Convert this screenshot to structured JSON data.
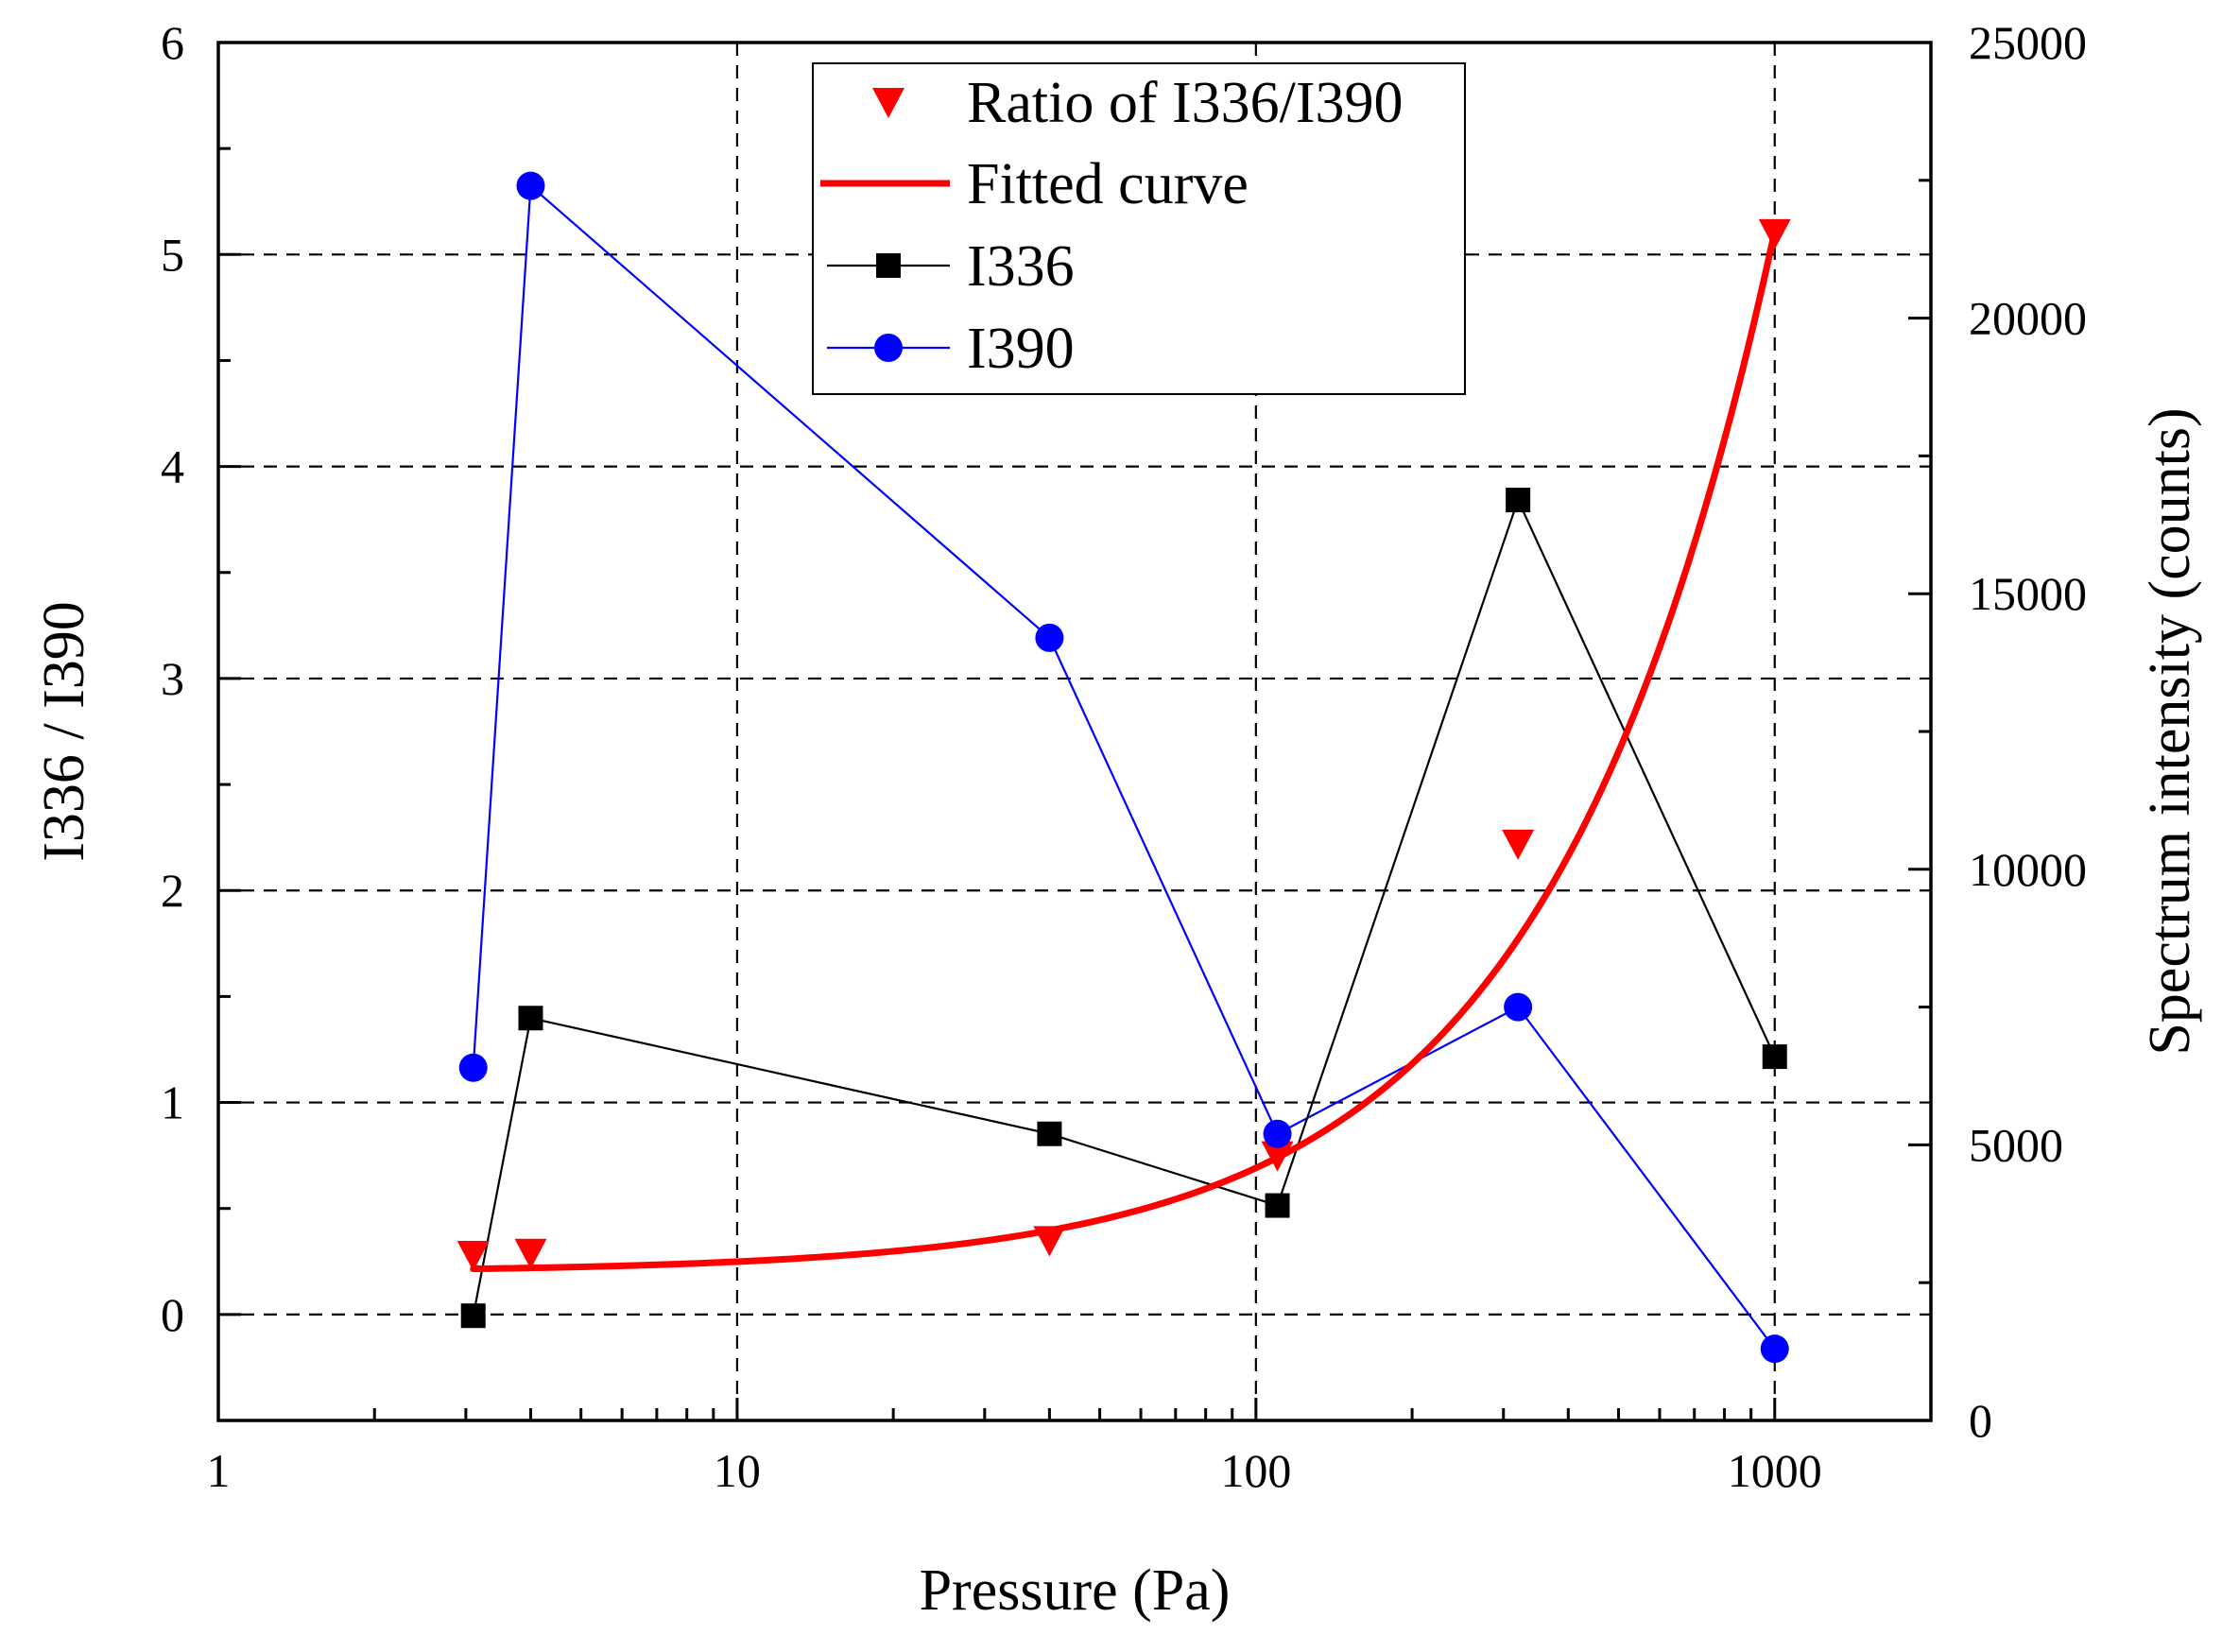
{
  "chart_data": {
    "type": "line",
    "title": "",
    "xlabel": "Pressure (Pa)",
    "ylabel_left": "I336 / I390",
    "ylabel_right": "Spectrum intensity (counts)",
    "x_scale": "log",
    "xlim": [
      1,
      2000
    ],
    "ylim_left": [
      -0.5,
      6
    ],
    "ylim_right": [
      0,
      25000
    ],
    "x_ticks": [
      1,
      10,
      100,
      1000
    ],
    "x_tick_labels": [
      "1",
      "10",
      "100",
      "1000"
    ],
    "y_left_ticks": [
      0,
      1,
      2,
      3,
      4,
      5,
      6
    ],
    "y_left_tick_labels": [
      "0",
      "1",
      "2",
      "3",
      "4",
      "5",
      "6"
    ],
    "y_right_ticks": [
      0,
      5000,
      10000,
      15000,
      20000,
      25000
    ],
    "y_right_tick_labels": [
      "0",
      "5000",
      "10000",
      "15000",
      "20000",
      "25000"
    ],
    "grid": true,
    "legend_position": "top-center",
    "series": [
      {
        "name": "Ratio of I336/I390",
        "axis": "left",
        "style": "markers",
        "marker": "triangle-down",
        "color": "#ff0000",
        "x": [
          3.1,
          4.0,
          40,
          110,
          320,
          1000
        ],
        "y": [
          0.28,
          0.29,
          0.35,
          0.75,
          2.22,
          5.1
        ]
      },
      {
        "name": "Fitted curve",
        "axis": "left",
        "style": "line",
        "color": "#ff0000",
        "equation": "y = 0.2 + 0.00491 * x",
        "x_range": [
          3.1,
          1000
        ]
      },
      {
        "name": "I336",
        "axis": "right",
        "style": "line-markers",
        "marker": "square",
        "color": "#000000",
        "x": [
          3.1,
          4.0,
          40,
          110,
          320,
          1000
        ],
        "y": [
          1900,
          7300,
          5200,
          3900,
          16700,
          6600
        ]
      },
      {
        "name": "I390",
        "axis": "right",
        "style": "line-markers",
        "marker": "circle",
        "color": "#0000ff",
        "x": [
          3.1,
          4.0,
          40,
          110,
          320,
          1000
        ],
        "y": [
          6400,
          22400,
          14200,
          5200,
          7500,
          1300
        ]
      }
    ]
  }
}
